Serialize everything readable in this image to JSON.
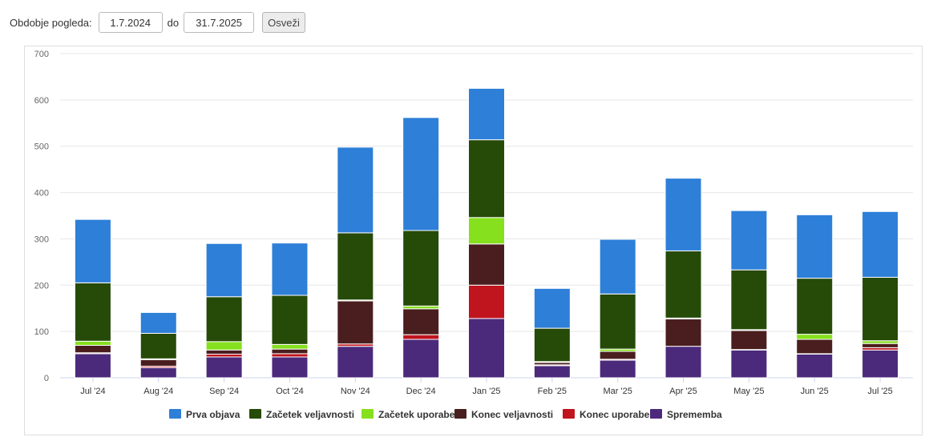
{
  "filter": {
    "label": "Obdobje pogleda:",
    "from": "1.7.2024",
    "separator": "do",
    "to": "31.7.2025",
    "refresh_label": "Osveži"
  },
  "chart_data": {
    "type": "bar",
    "stacked": true,
    "categories": [
      "Jul '24",
      "Aug '24",
      "Sep '24",
      "Oct '24",
      "Nov '24",
      "Dec '24",
      "Jan '25",
      "Feb '25",
      "Mar '25",
      "Apr '25",
      "May '25",
      "Jun '25",
      "Jul '25"
    ],
    "ylim": [
      0,
      700
    ],
    "yticks": [
      0,
      100,
      200,
      300,
      400,
      500,
      600,
      700
    ],
    "grid": true,
    "legend_position": "bottom",
    "series": [
      {
        "name": "Sprememba",
        "color": "#4b2a7b",
        "values": [
          52,
          22,
          45,
          45,
          68,
          83,
          128,
          26,
          38,
          68,
          60,
          51,
          60
        ]
      },
      {
        "name": "Konec uporabe",
        "color": "#c0141e",
        "values": [
          2,
          3,
          6,
          7,
          5,
          10,
          72,
          2,
          2,
          0,
          1,
          1,
          5
        ]
      },
      {
        "name": "Konec veljavnosti",
        "color": "#4a1e1e",
        "values": [
          16,
          14,
          9,
          10,
          93,
          56,
          89,
          5,
          17,
          59,
          41,
          31,
          9
        ]
      },
      {
        "name": "Začetek uporabe",
        "color": "#86e01e",
        "values": [
          9,
          2,
          18,
          10,
          2,
          6,
          57,
          2,
          5,
          2,
          2,
          11,
          6
        ]
      },
      {
        "name": "Začetek veljavnosti",
        "color": "#264a08",
        "values": [
          126,
          55,
          97,
          106,
          145,
          163,
          168,
          72,
          119,
          145,
          129,
          121,
          137
        ]
      },
      {
        "name": "Prva objava",
        "color": "#2d7fd8",
        "values": [
          137,
          45,
          115,
          113,
          185,
          244,
          111,
          86,
          118,
          157,
          128,
          137,
          142
        ]
      }
    ],
    "legend_order": [
      "Prva objava",
      "Začetek veljavnosti",
      "Začetek uporabe",
      "Konec veljavnosti",
      "Konec uporabe",
      "Sprememba"
    ]
  }
}
